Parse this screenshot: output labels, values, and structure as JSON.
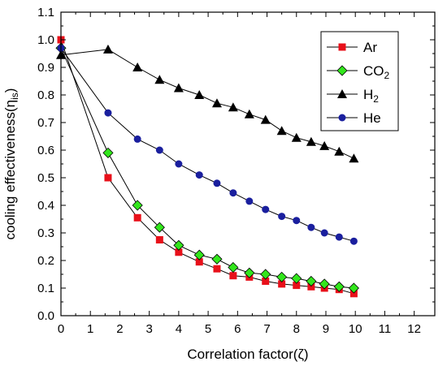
{
  "chart_data": {
    "type": "line",
    "xlabel": "Correlation factor(ζ)",
    "ylabel": "cooling effectiveness(η",
    "ylabel_sub": "is",
    "ylabel_end": ")",
    "xlim": [
      0,
      12.7
    ],
    "ylim": [
      0,
      1.1
    ],
    "xticks": [
      0,
      1,
      2,
      3,
      4,
      5,
      6,
      7,
      8,
      9,
      10,
      11,
      12
    ],
    "yticks": [
      0.0,
      0.1,
      0.2,
      0.3,
      0.4,
      0.5,
      0.6,
      0.7,
      0.8,
      0.9,
      1.0,
      1.1
    ],
    "grid": false,
    "legend_position": "top-right",
    "series": [
      {
        "name": "Ar",
        "name_main": "Ar",
        "name_sub": "",
        "marker": "square",
        "color": "#e8101a",
        "x": [
          0,
          1.6,
          2.6,
          3.35,
          4.0,
          4.7,
          5.3,
          5.85,
          6.4,
          6.95,
          7.5,
          8.0,
          8.5,
          8.95,
          9.45,
          9.95
        ],
        "y": [
          1.0,
          0.5,
          0.355,
          0.275,
          0.23,
          0.195,
          0.17,
          0.145,
          0.14,
          0.125,
          0.115,
          0.11,
          0.105,
          0.1,
          0.095,
          0.08
        ]
      },
      {
        "name": "CO2",
        "name_main": "CO",
        "name_sub": "2",
        "marker": "diamond",
        "color": "#32e61c",
        "x": [
          0,
          1.6,
          2.6,
          3.35,
          4.0,
          4.7,
          5.3,
          5.85,
          6.4,
          6.95,
          7.5,
          8.0,
          8.5,
          8.95,
          9.45,
          9.95
        ],
        "y": [
          0.97,
          0.59,
          0.4,
          0.32,
          0.255,
          0.22,
          0.205,
          0.175,
          0.155,
          0.15,
          0.14,
          0.135,
          0.125,
          0.115,
          0.105,
          0.1
        ]
      },
      {
        "name": "H2",
        "name_main": "H",
        "name_sub": "2",
        "marker": "triangle",
        "color": "#000000",
        "x": [
          0,
          1.6,
          2.6,
          3.35,
          4.0,
          4.7,
          5.3,
          5.85,
          6.4,
          6.95,
          7.5,
          8.0,
          8.5,
          8.95,
          9.45,
          9.95
        ],
        "y": [
          0.945,
          0.965,
          0.9,
          0.855,
          0.825,
          0.8,
          0.77,
          0.755,
          0.73,
          0.71,
          0.67,
          0.645,
          0.63,
          0.615,
          0.595,
          0.57
        ]
      },
      {
        "name": "He",
        "name_main": "He",
        "name_sub": "",
        "marker": "circle",
        "color": "#1a1f9e",
        "x": [
          0,
          1.6,
          2.6,
          3.35,
          4.0,
          4.7,
          5.3,
          5.85,
          6.4,
          6.95,
          7.5,
          8.0,
          8.5,
          8.95,
          9.45,
          9.95
        ],
        "y": [
          0.97,
          0.735,
          0.64,
          0.6,
          0.55,
          0.51,
          0.48,
          0.445,
          0.415,
          0.385,
          0.36,
          0.345,
          0.32,
          0.3,
          0.285,
          0.27
        ]
      }
    ]
  }
}
